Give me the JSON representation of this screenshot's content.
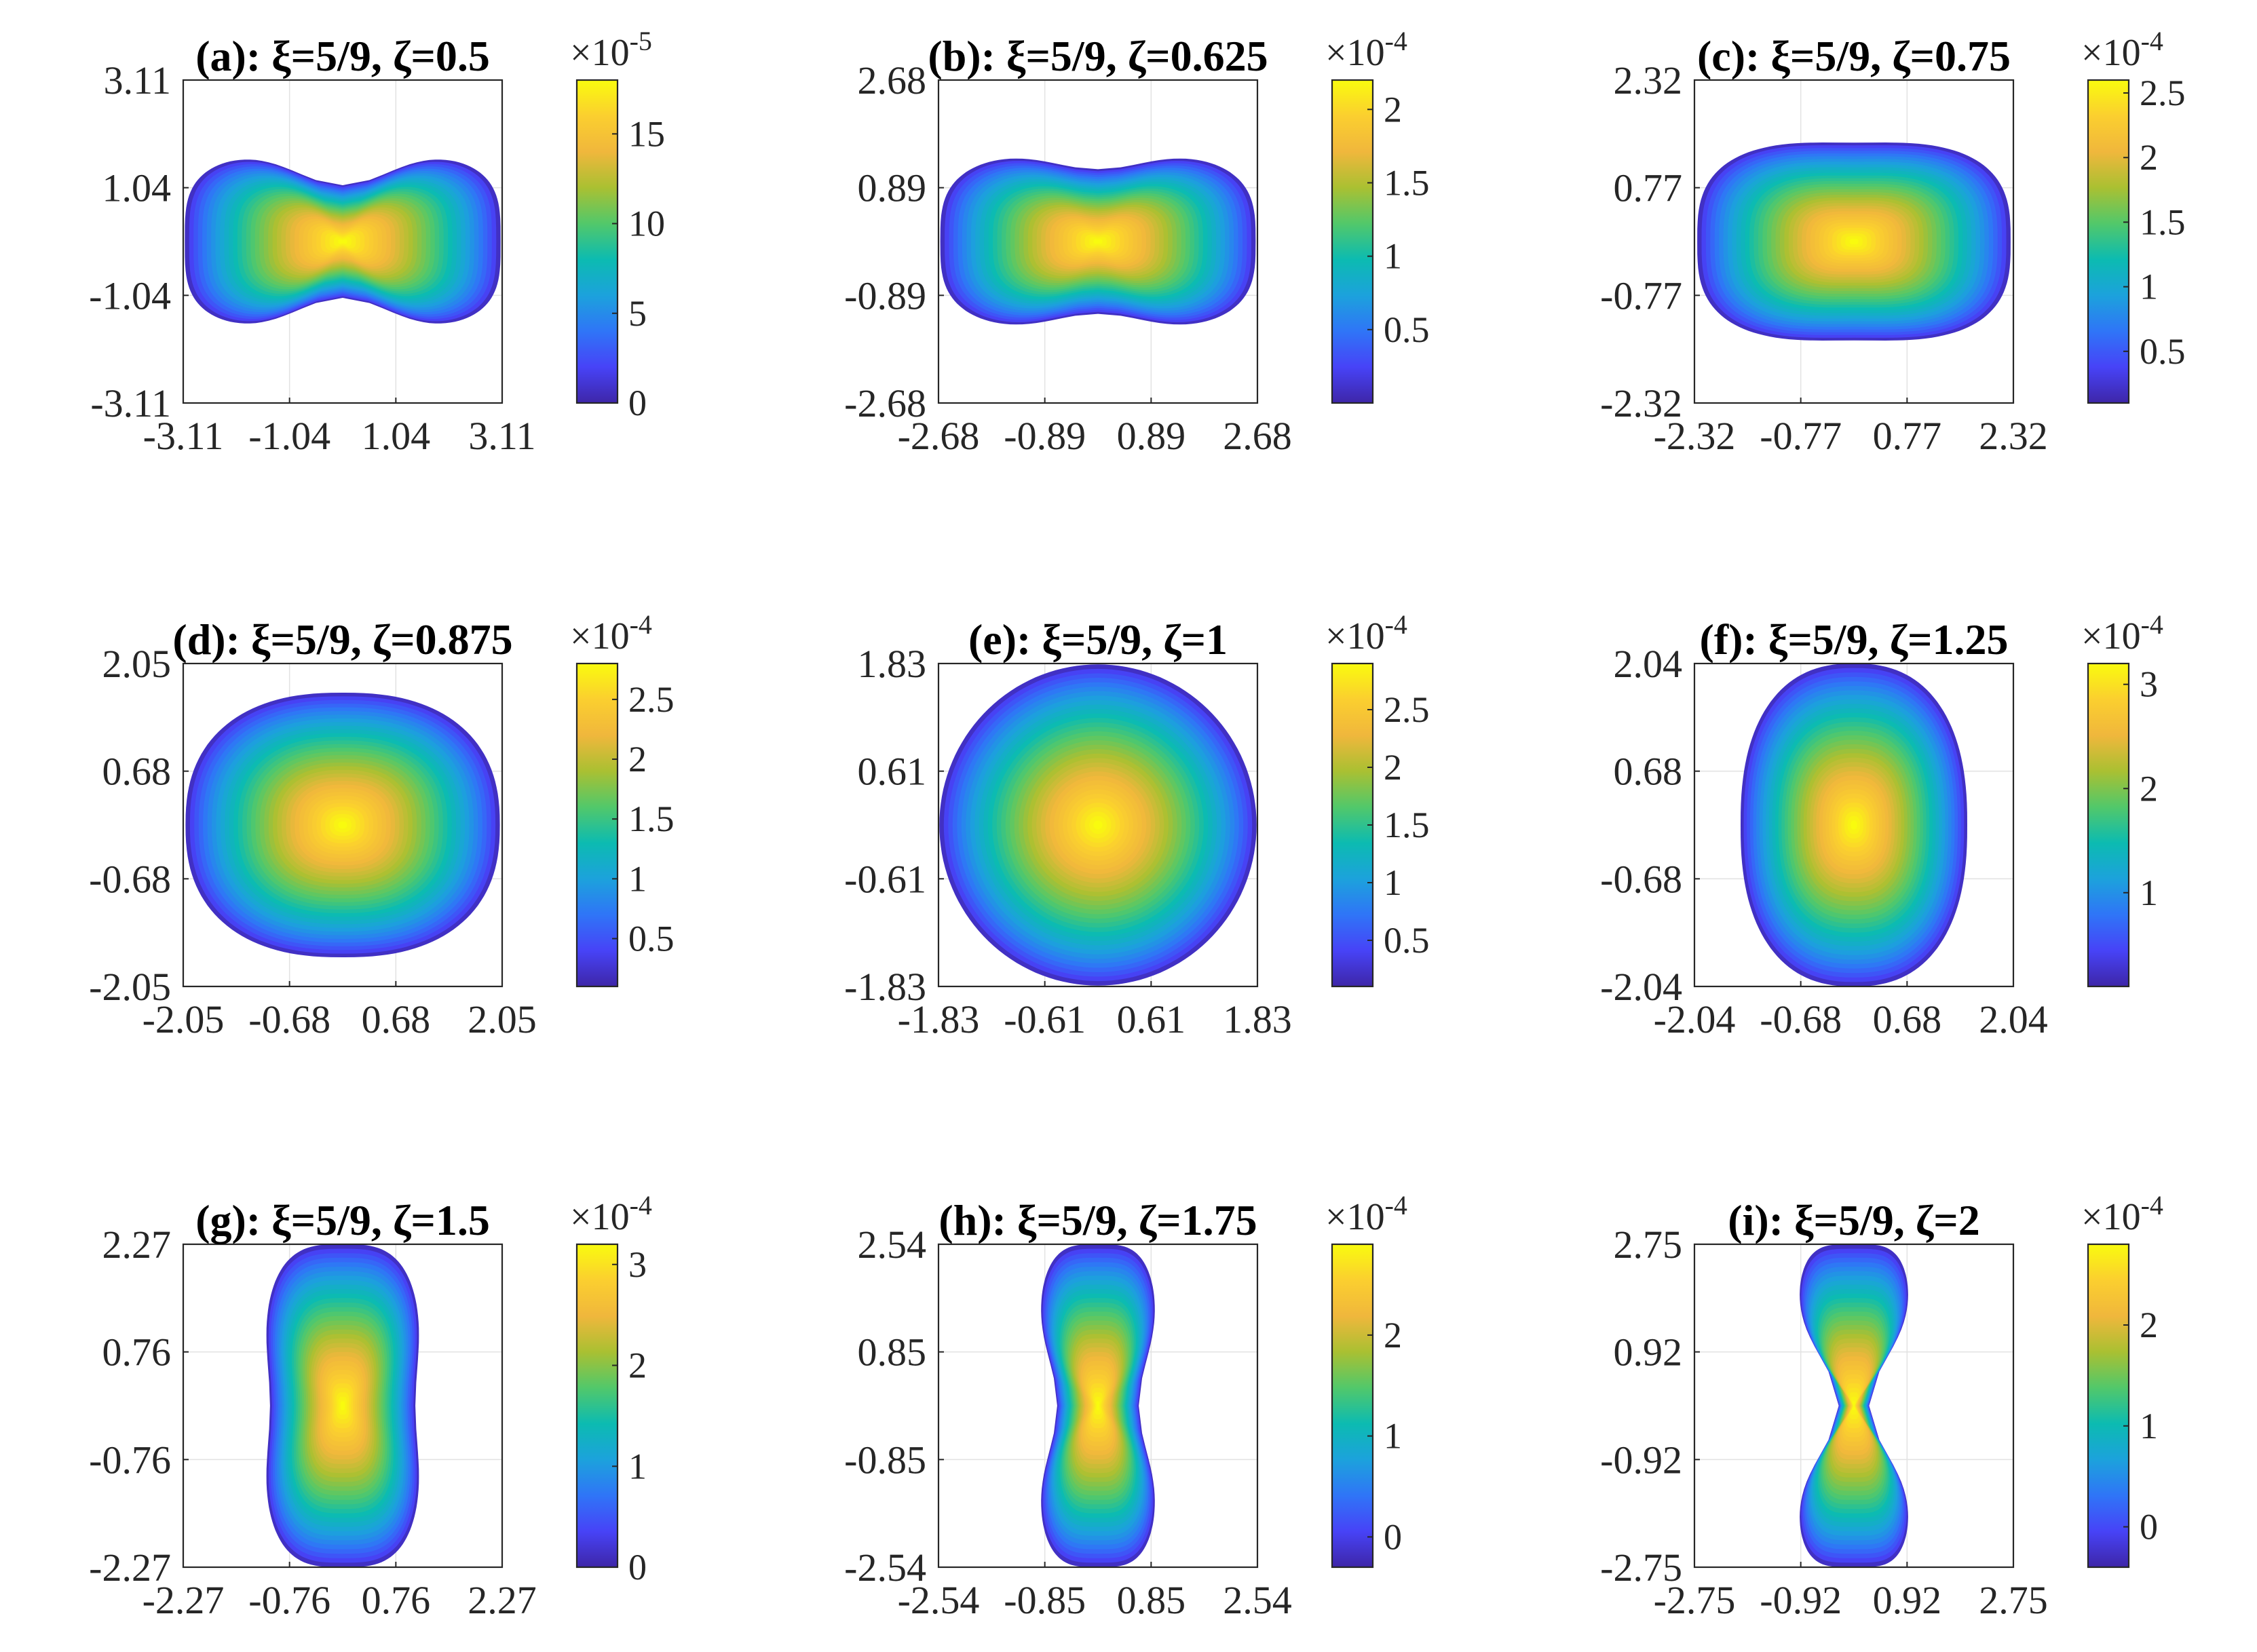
{
  "colors": {
    "colormap": [
      "#3e26a8",
      "#4743f7",
      "#2f75f7",
      "#1ca2dc",
      "#0cbbb1",
      "#52c86a",
      "#aac032",
      "#f0b73c",
      "#fbcf2f",
      "#f9fb0e"
    ],
    "axis": "#262626",
    "grid": "#e3e3e3"
  },
  "chart_data": [
    {
      "id": "a",
      "type": "heatmap",
      "title": "(a): ξ=5/9, ζ=0.5",
      "xlim": [
        -3.11,
        3.11
      ],
      "ylim": [
        -3.11,
        3.11
      ],
      "xticks": [
        "-3.11",
        "-1.04",
        "1.04",
        "3.11"
      ],
      "yticks": [
        "3.11",
        "1.04",
        "-1.04",
        "-3.11"
      ],
      "colorbar": {
        "exponent_base": "×10",
        "exponent": "-5",
        "range": [
          0,
          18
        ],
        "ticks": [
          0,
          5,
          10,
          15
        ],
        "tick_labels": [
          "0",
          "5",
          "10",
          "15"
        ]
      },
      "shape": {
        "rx": 3.08,
        "ry": 1.75,
        "waist": 0.62,
        "edge_exp": 3.5
      }
    },
    {
      "id": "b",
      "type": "heatmap",
      "title": "(b): ξ=5/9, ζ=0.625",
      "xlim": [
        -2.68,
        2.68
      ],
      "ylim": [
        -2.68,
        2.68
      ],
      "xticks": [
        "-2.68",
        "-0.89",
        "0.89",
        "2.68"
      ],
      "yticks": [
        "2.68",
        "0.89",
        "-0.89",
        "-2.68"
      ],
      "colorbar": {
        "exponent_base": "×10",
        "exponent": "-4",
        "range": [
          0,
          2.2
        ],
        "ticks": [
          0.5,
          1,
          1.5,
          2
        ],
        "tick_labels": [
          "0.5",
          "1",
          "1.5",
          "2"
        ]
      },
      "shape": {
        "rx": 2.65,
        "ry": 1.5,
        "waist": 0.8,
        "edge_exp": 3.2
      }
    },
    {
      "id": "c",
      "type": "heatmap",
      "title": "(c): ξ=5/9, ζ=0.75",
      "xlim": [
        -2.32,
        2.32
      ],
      "ylim": [
        -2.32,
        2.32
      ],
      "xticks": [
        "-2.32",
        "-0.77",
        "0.77",
        "2.32"
      ],
      "yticks": [
        "2.32",
        "0.77",
        "-0.77",
        "-2.32"
      ],
      "colorbar": {
        "exponent_base": "×10",
        "exponent": "-4",
        "range": [
          0.1,
          2.6
        ],
        "ticks": [
          0.5,
          1,
          1.5,
          2,
          2.5
        ],
        "tick_labels": [
          "0.5",
          "1",
          "1.5",
          "2",
          "2.5"
        ]
      },
      "shape": {
        "rx": 2.28,
        "ry": 1.45,
        "waist": 0.98,
        "edge_exp": 3.0
      }
    },
    {
      "id": "d",
      "type": "heatmap",
      "title": "(d): ξ=5/9, ζ=0.875",
      "xlim": [
        -2.05,
        2.05
      ],
      "ylim": [
        -2.05,
        2.05
      ],
      "xticks": [
        "-2.05",
        "-0.68",
        "0.68",
        "2.05"
      ],
      "yticks": [
        "2.05",
        "0.68",
        "-0.68",
        "-2.05"
      ],
      "colorbar": {
        "exponent_base": "×10",
        "exponent": "-4",
        "range": [
          0.1,
          2.8
        ],
        "ticks": [
          0.5,
          1,
          1.5,
          2,
          2.5
        ],
        "tick_labels": [
          "0.5",
          "1",
          "1.5",
          "2",
          "2.5"
        ]
      },
      "shape": {
        "rx": 2.02,
        "ry": 1.68,
        "waist": 1.0,
        "edge_exp": 2.4
      }
    },
    {
      "id": "e",
      "type": "heatmap",
      "title": "(e): ξ=5/9, ζ=1",
      "xlim": [
        -1.83,
        1.83
      ],
      "ylim": [
        -1.83,
        1.83
      ],
      "xticks": [
        "-1.83",
        "-0.61",
        "0.61",
        "1.83"
      ],
      "yticks": [
        "1.83",
        "0.61",
        "-0.61",
        "-1.83"
      ],
      "colorbar": {
        "exponent_base": "×10",
        "exponent": "-4",
        "range": [
          0.1,
          2.9
        ],
        "ticks": [
          0.5,
          1,
          1.5,
          2,
          2.5
        ],
        "tick_labels": [
          "0.5",
          "1",
          "1.5",
          "2",
          "2.5"
        ]
      },
      "shape": {
        "rx": 1.82,
        "ry": 1.82,
        "waist": 1.0,
        "edge_exp": 2.0
      }
    },
    {
      "id": "f",
      "type": "heatmap",
      "title": "(f): ξ=5/9, ζ=1.25",
      "xlim": [
        -2.04,
        2.04
      ],
      "ylim": [
        -2.04,
        2.04
      ],
      "xticks": [
        "-2.04",
        "-0.68",
        "0.68",
        "2.04"
      ],
      "yticks": [
        "2.04",
        "0.68",
        "-0.68",
        "-2.04"
      ],
      "colorbar": {
        "exponent_base": "×10",
        "exponent": "-4",
        "range": [
          0.1,
          3.2
        ],
        "ticks": [
          1,
          2,
          3
        ],
        "tick_labels": [
          "1",
          "2",
          "3"
        ]
      },
      "shape": {
        "rx": 1.45,
        "ry": 2.04,
        "waist": 1.0,
        "edge_exp": 2.4
      }
    },
    {
      "id": "g",
      "type": "heatmap",
      "title": "(g): ξ=5/9, ζ=1.5",
      "xlim": [
        -2.27,
        2.27
      ],
      "ylim": [
        -2.27,
        2.27
      ],
      "xticks": [
        "-2.27",
        "-0.76",
        "0.76",
        "2.27"
      ],
      "yticks": [
        "2.27",
        "0.76",
        "-0.76",
        "-2.27"
      ],
      "colorbar": {
        "exponent_base": "×10",
        "exponent": "-4",
        "range": [
          0,
          3.2
        ],
        "ticks": [
          0,
          1,
          2,
          3
        ],
        "tick_labels": [
          "0",
          "1",
          "2",
          "3"
        ]
      },
      "shape": {
        "rx": 1.15,
        "ry": 2.27,
        "waist": 0.9,
        "edge_exp": 3.2
      }
    },
    {
      "id": "h",
      "type": "heatmap",
      "title": "(h): ξ=5/9, ζ=1.75",
      "xlim": [
        -2.54,
        2.54
      ],
      "ylim": [
        -2.54,
        2.54
      ],
      "xticks": [
        "-2.54",
        "-0.85",
        "0.85",
        "2.54"
      ],
      "yticks": [
        "2.54",
        "0.85",
        "-0.85",
        "-2.54"
      ],
      "colorbar": {
        "exponent_base": "×10",
        "exponent": "-4",
        "range": [
          -0.3,
          2.9
        ],
        "ticks": [
          0,
          1,
          2
        ],
        "tick_labels": [
          "0",
          "1",
          "2"
        ]
      },
      "shape": {
        "rx": 1.0,
        "ry": 2.54,
        "waist": 0.65,
        "edge_exp": 3.5
      }
    },
    {
      "id": "i",
      "type": "heatmap",
      "title": "(i): ξ=5/9, ζ=2",
      "xlim": [
        -2.75,
        2.75
      ],
      "ylim": [
        -2.75,
        2.75
      ],
      "xticks": [
        "-2.75",
        "-0.92",
        "0.92",
        "2.75"
      ],
      "yticks": [
        "2.75",
        "0.92",
        "-0.92",
        "-2.75"
      ],
      "colorbar": {
        "exponent_base": "×10",
        "exponent": "-4",
        "range": [
          -0.4,
          2.8
        ],
        "ticks": [
          0,
          1,
          2
        ],
        "tick_labels": [
          "0",
          "1",
          "2"
        ]
      },
      "shape": {
        "rx": 1.05,
        "ry": 2.75,
        "waist": 0.25,
        "edge_exp": 4.0
      }
    }
  ]
}
